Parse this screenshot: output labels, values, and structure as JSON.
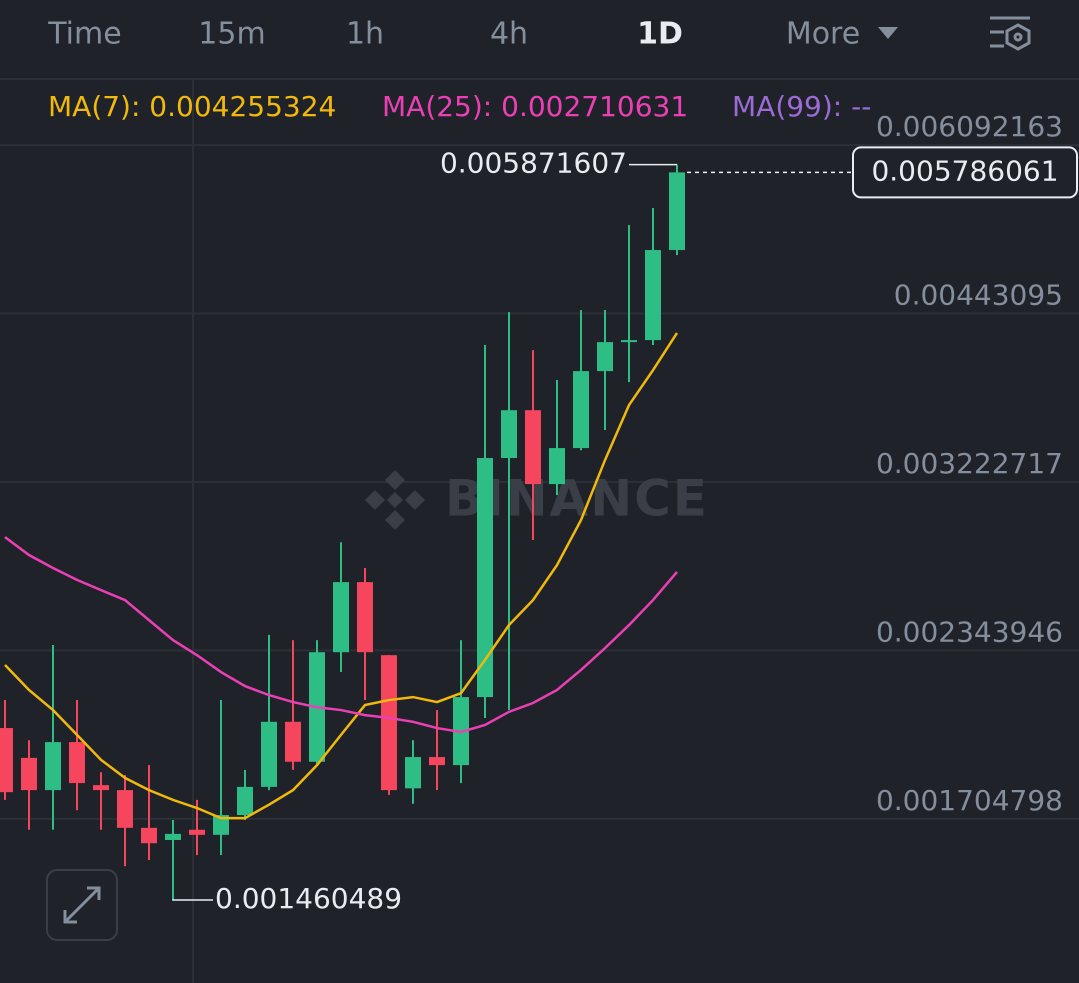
{
  "tabs": [
    "Time",
    "15m",
    "1h",
    "4h",
    "1D",
    "More"
  ],
  "active_tab": 4,
  "chart_data": {
    "type": "candlestick",
    "watermark": "BINANCE",
    "log_scale": true,
    "grid": true,
    "ylim": [
      0.00125,
      0.00689
    ],
    "yticks": [
      0.006092163,
      0.00443095,
      0.003222717,
      0.002343946,
      0.001704798
    ],
    "up_color": "#2ebd85",
    "down_color": "#f6465d",
    "open": [
      0.002024,
      0.001913,
      0.0018,
      0.001971,
      0.001817,
      0.0018,
      0.001676,
      0.001638,
      0.00167,
      0.001654,
      0.001717,
      0.001811,
      0.002048,
      0.001899,
      0.002336,
      0.002667,
      0.002323,
      0.001806,
      0.001916,
      0.001887,
      0.002146,
      0.003372,
      0.003691,
      0.00321,
      0.003436,
      0.003974,
      0.004198,
      0.004214,
      0.004996
    ],
    "high": [
      0.002134,
      0.001978,
      0.002368,
      0.002134,
      0.001862,
      0.001852,
      0.001887,
      0.001701,
      0.001767,
      0.002134,
      0.00187,
      0.002414,
      0.00239,
      0.00239,
      0.002876,
      0.002739,
      0.002323,
      0.001978,
      0.002094,
      0.00239,
      0.004175,
      0.004443,
      0.004135,
      0.003908,
      0.00446,
      0.00446,
      0.005237,
      0.005409,
      0.005871607
    ],
    "low": [
      0.001767,
      0.00167,
      0.00167,
      0.001733,
      0.00167,
      0.001559,
      0.001577,
      0.001460489,
      0.001592,
      0.001592,
      0.001701,
      0.0018,
      0.00187,
      0.001887,
      0.00225,
      0.002134,
      0.001784,
      0.001754,
      0.0018,
      0.001824,
      0.002063,
      0.002094,
      0.002888,
      0.003144,
      0.003422,
      0.003555,
      0.003892,
      0.004175,
      0.004949
    ],
    "close": [
      0.001793,
      0.0018,
      0.001971,
      0.001824,
      0.0018,
      0.001676,
      0.001628,
      0.001657,
      0.001654,
      0.001717,
      0.001811,
      0.002048,
      0.001899,
      0.002336,
      0.002667,
      0.002336,
      0.0018,
      0.001916,
      0.001887,
      0.002146,
      0.003372,
      0.003691,
      0.00321,
      0.003436,
      0.003974,
      0.004198,
      0.004214,
      0.004996,
      0.005786061
    ],
    "legend": [
      {
        "label": "MA(7): 0.004255324",
        "color": "#f0b90b"
      },
      {
        "label": "MA(25): 0.002710631",
        "color": "#eb40b5"
      },
      {
        "label": "MA(99): --",
        "color": "#9b6bd6"
      }
    ],
    "series": [
      {
        "color": "#f0b90b",
        "values": [
          0.00228,
          0.002175,
          0.002094,
          0.001998,
          0.001906,
          0.001842,
          0.0018,
          0.001767,
          0.00174,
          0.001707,
          0.001707,
          0.001751,
          0.0018,
          0.001887,
          0.001998,
          0.002114,
          0.002134,
          0.002146,
          0.002126,
          0.002162,
          0.002302,
          0.002459,
          0.002578,
          0.002754,
          0.002999,
          0.003359,
          0.003727,
          0.003981,
          0.004271
        ]
      },
      {
        "color": "#eb40b5",
        "values": [
          0.002904,
          0.002807,
          0.002739,
          0.002678,
          0.002627,
          0.002578,
          0.002482,
          0.00239,
          0.002323,
          0.00225,
          0.002191,
          0.002154,
          0.002126,
          0.002105,
          0.002094,
          0.002074,
          0.002063,
          0.002048,
          0.002024,
          0.002009,
          0.002036,
          0.002087,
          0.002122,
          0.002175,
          0.002259,
          0.002354,
          0.002459,
          0.002578,
          0.002719
        ]
      }
    ],
    "max_label": 0.005871607,
    "min_label": 0.001460489,
    "last_price": 0.005786061
  }
}
